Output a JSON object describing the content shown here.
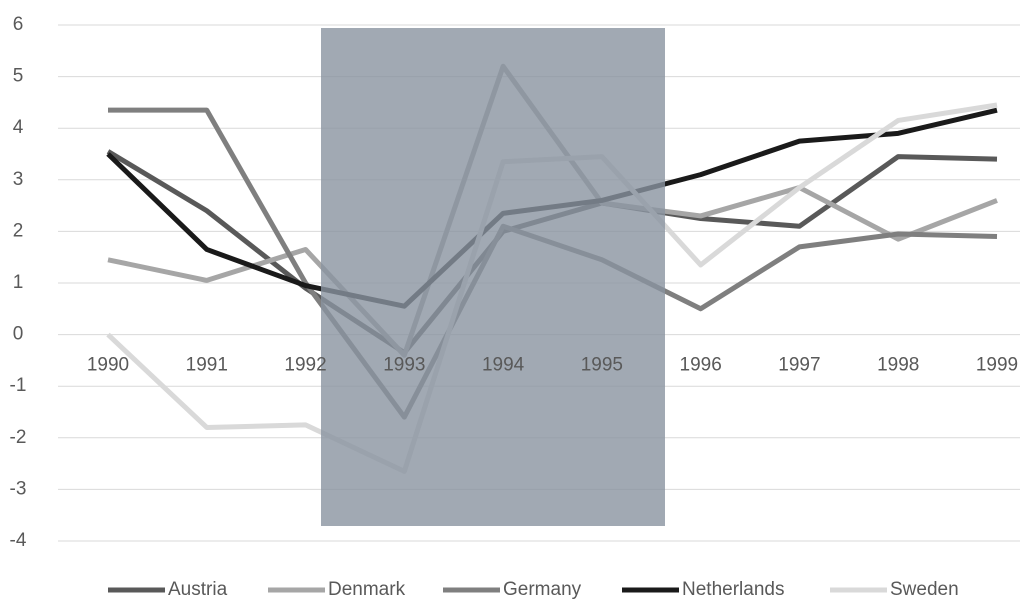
{
  "chart_data": {
    "type": "line",
    "categories": [
      "1990",
      "1991",
      "1992",
      "1993",
      "1994",
      "1995",
      "1996",
      "1997",
      "1998",
      "1999"
    ],
    "series": [
      {
        "name": "Austria",
        "color": "#595959",
        "values": [
          3.55,
          2.4,
          0.9,
          -0.35,
          2.0,
          2.55,
          2.25,
          2.1,
          3.45,
          3.4
        ]
      },
      {
        "name": "Denmark",
        "color": "#a6a6a6",
        "values": [
          1.45,
          1.05,
          1.65,
          -0.4,
          5.2,
          2.55,
          2.3,
          2.85,
          1.85,
          2.6
        ]
      },
      {
        "name": "Germany",
        "color": "#7f7f7f",
        "values": [
          4.35,
          4.35,
          1.0,
          -1.6,
          2.1,
          1.45,
          0.5,
          1.7,
          1.95,
          1.9
        ]
      },
      {
        "name": "Netherlands",
        "color": "#1a1a1a",
        "values": [
          3.5,
          1.65,
          0.95,
          0.55,
          2.35,
          2.6,
          3.1,
          3.75,
          3.9,
          4.35
        ]
      },
      {
        "name": "Sweden",
        "color": "#d9d9d9",
        "values": [
          0,
          -1.8,
          -1.75,
          -2.65,
          3.35,
          3.45,
          1.35,
          2.85,
          4.15,
          4.45
        ]
      }
    ],
    "ylim": [
      -4,
      6
    ],
    "yticks": [
      -4,
      -3,
      -2,
      -1,
      0,
      1,
      2,
      3,
      4,
      5,
      6
    ],
    "grid": true,
    "legend": "bottom"
  }
}
